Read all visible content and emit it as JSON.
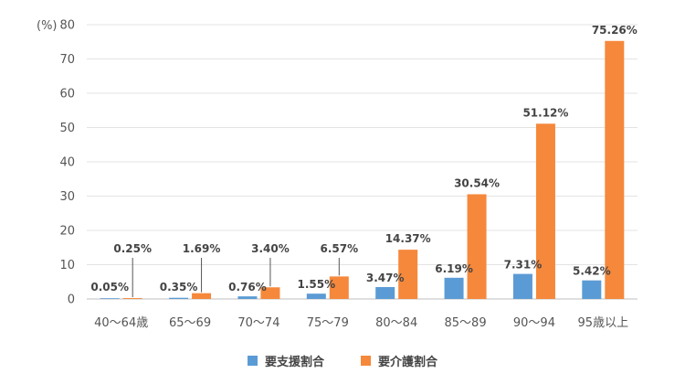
{
  "chart_data": {
    "type": "bar",
    "unit_label": "(%)",
    "categories": [
      "40～64歳",
      "65～69",
      "70～74",
      "75～79",
      "80～84",
      "85～89",
      "90～94",
      "95歳以上"
    ],
    "series": [
      {
        "name": "要支援割合",
        "color": "#5b9bd5",
        "values": [
          0.05,
          0.35,
          0.76,
          1.55,
          3.47,
          6.19,
          7.31,
          5.42
        ],
        "labels": [
          "0.05%",
          "0.35%",
          "0.76%",
          "1.55%",
          "3.47%",
          "6.19%",
          "7.31%",
          "5.42%"
        ]
      },
      {
        "name": "要介護割合",
        "color": "#f5883b",
        "values": [
          0.25,
          1.69,
          3.4,
          6.57,
          14.37,
          30.54,
          51.12,
          75.26
        ],
        "labels": [
          "0.25%",
          "1.69%",
          "3.40%",
          "6.57%",
          "14.37%",
          "30.54%",
          "51.12%",
          "75.26%"
        ]
      }
    ],
    "ylim": [
      0,
      80
    ],
    "yticks": [
      "0",
      "10",
      "20",
      "30",
      "40",
      "50",
      "60",
      "70",
      "80"
    ],
    "grid": true,
    "legend_position": "bottom"
  }
}
